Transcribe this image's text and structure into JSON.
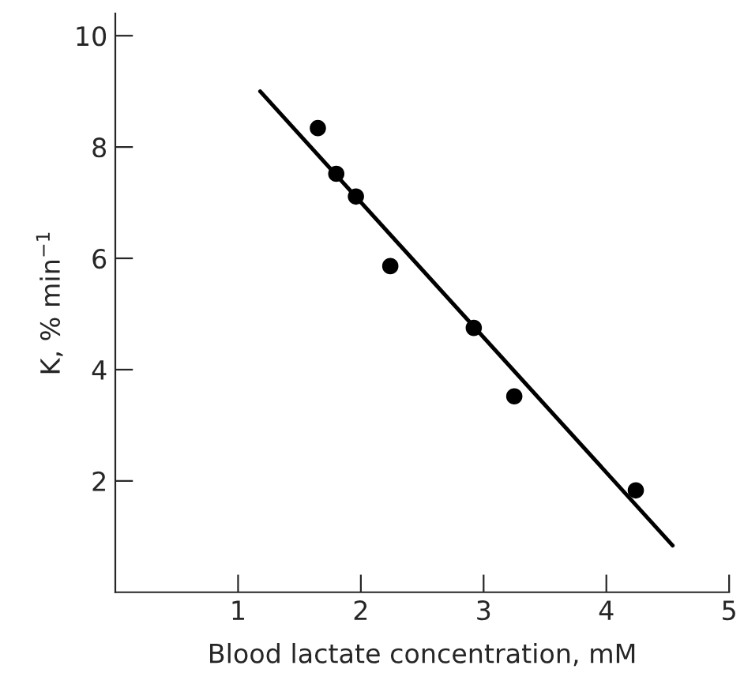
{
  "chart_data": {
    "type": "scatter",
    "xlabel": "Blood lactate concentration, mM",
    "ylabel": "K, % min$^{−1}$",
    "x": [
      1.65,
      1.8,
      1.96,
      2.24,
      2.92,
      3.25,
      4.24
    ],
    "series": [
      {
        "color": "#000000",
        "marker": "circle",
        "values": [
          8.34,
          7.52,
          7.11,
          5.86,
          4.75,
          3.52,
          1.83
        ]
      },
      {
        "type": "line",
        "marker": "none",
        "color": "#000000",
        "x": [
          1.18,
          4.54
        ],
        "values": [
          9.0,
          0.84
        ]
      }
    ],
    "xlim": [
      0,
      5
    ],
    "ylim": [
      0,
      10.4
    ],
    "xticks": [
      1,
      2,
      3,
      4,
      5
    ],
    "yticks": [
      2,
      4,
      6,
      8,
      10
    ],
    "grid": false,
    "legend": false
  }
}
